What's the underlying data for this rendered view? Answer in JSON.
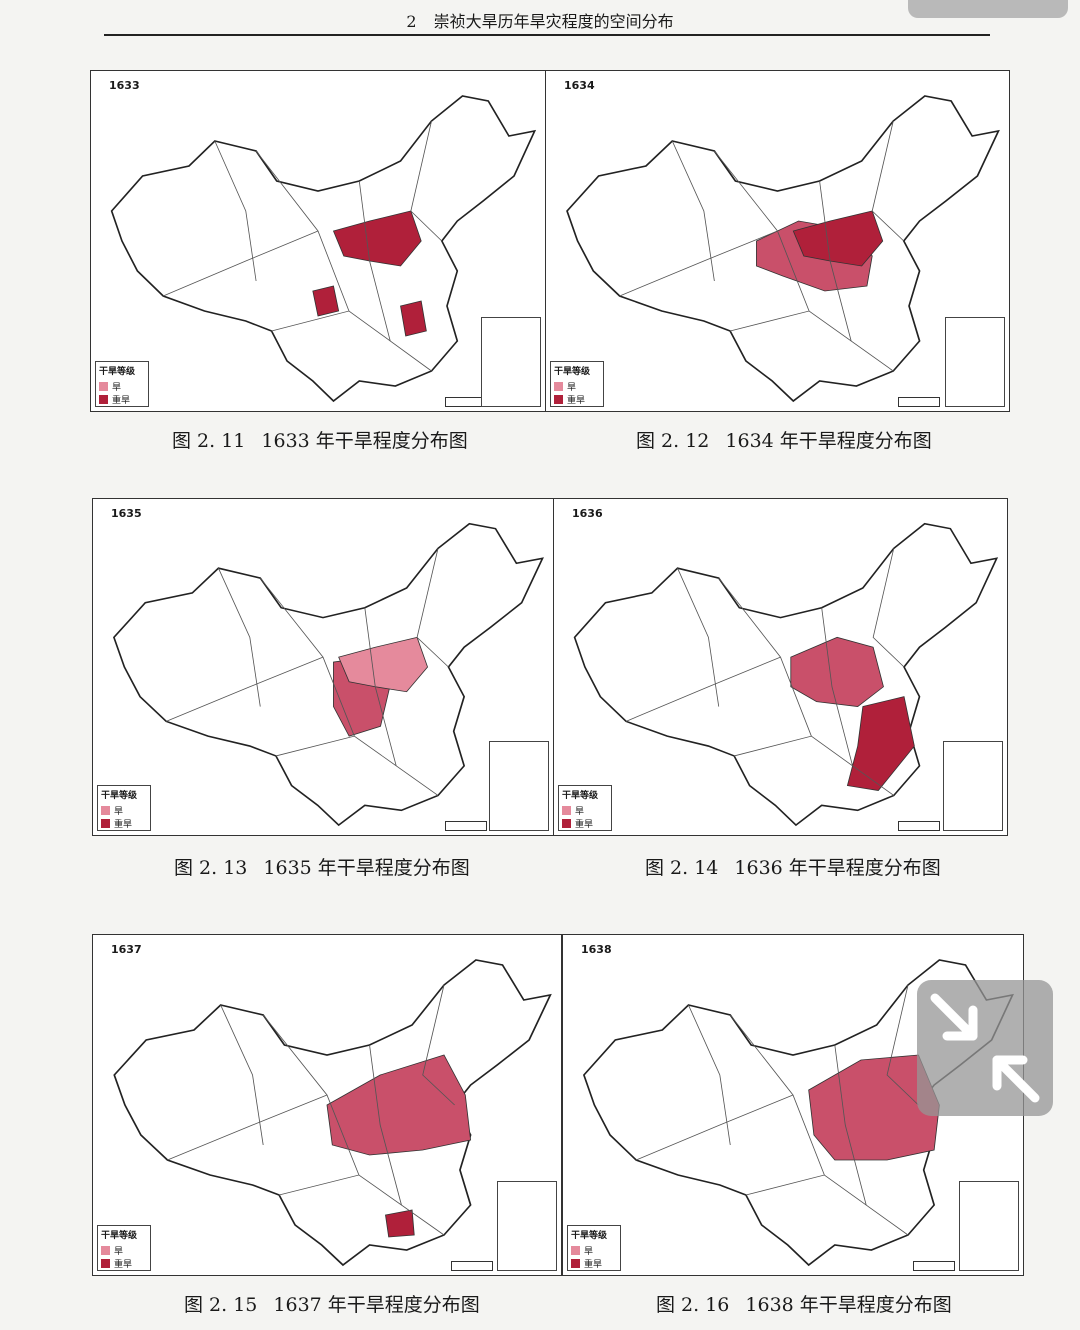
{
  "header": {
    "chapter_num": "2",
    "title": "崇祯大旱历年旱灾程度的空间分布"
  },
  "legend": {
    "title": "干旱等级",
    "light": "旱",
    "heavy": "重旱"
  },
  "colors": {
    "light": "#e58a9c",
    "heavy": "#b0203a",
    "mid": "#c9506a"
  },
  "panels": [
    {
      "year": "1633",
      "fig": "图 2. 11",
      "caption": "1633 年干旱程度分布图"
    },
    {
      "year": "1634",
      "fig": "图 2. 12",
      "caption": "1634 年干旱程度分布图"
    },
    {
      "year": "1635",
      "fig": "图 2. 13",
      "caption": "1635 年干旱程度分布图"
    },
    {
      "year": "1636",
      "fig": "图 2. 14",
      "caption": "1636 年干旱程度分布图"
    },
    {
      "year": "1637",
      "fig": "图 2. 15",
      "caption": "1637 年干旱程度分布图"
    },
    {
      "year": "1638",
      "fig": "图 2. 16",
      "caption": "1638 年干旱程度分布图"
    }
  ]
}
